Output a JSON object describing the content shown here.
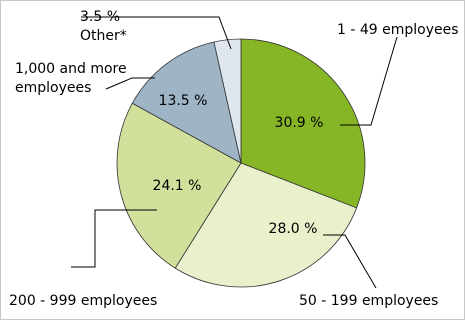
{
  "chart_data": {
    "type": "pie",
    "slices": [
      {
        "label": "1 - 49 employees",
        "value": 30.9,
        "value_label": "30.9 %",
        "color": "#86b626"
      },
      {
        "label": "50 - 199 employees",
        "value": 28.0,
        "value_label": "28.0 %",
        "color": "#e8f0cc"
      },
      {
        "label": "200 - 999 employees",
        "value": 24.1,
        "value_label": "24.1 %",
        "color": "#d1e09a"
      },
      {
        "label": "1,000 and more employees",
        "label_lines": [
          "1,000 and more",
          "employees"
        ],
        "value": 13.5,
        "value_label": "13.5 %",
        "color": "#9fb5c6"
      },
      {
        "label": "3.5 % Other*",
        "label_lines": [
          "3.5 %",
          "Other*"
        ],
        "value": 3.5,
        "value_label": "",
        "color": "#dfe6ee"
      }
    ],
    "start": "12 o'clock",
    "direction": "clockwise",
    "legend": "none",
    "slice_label": "percentage"
  }
}
